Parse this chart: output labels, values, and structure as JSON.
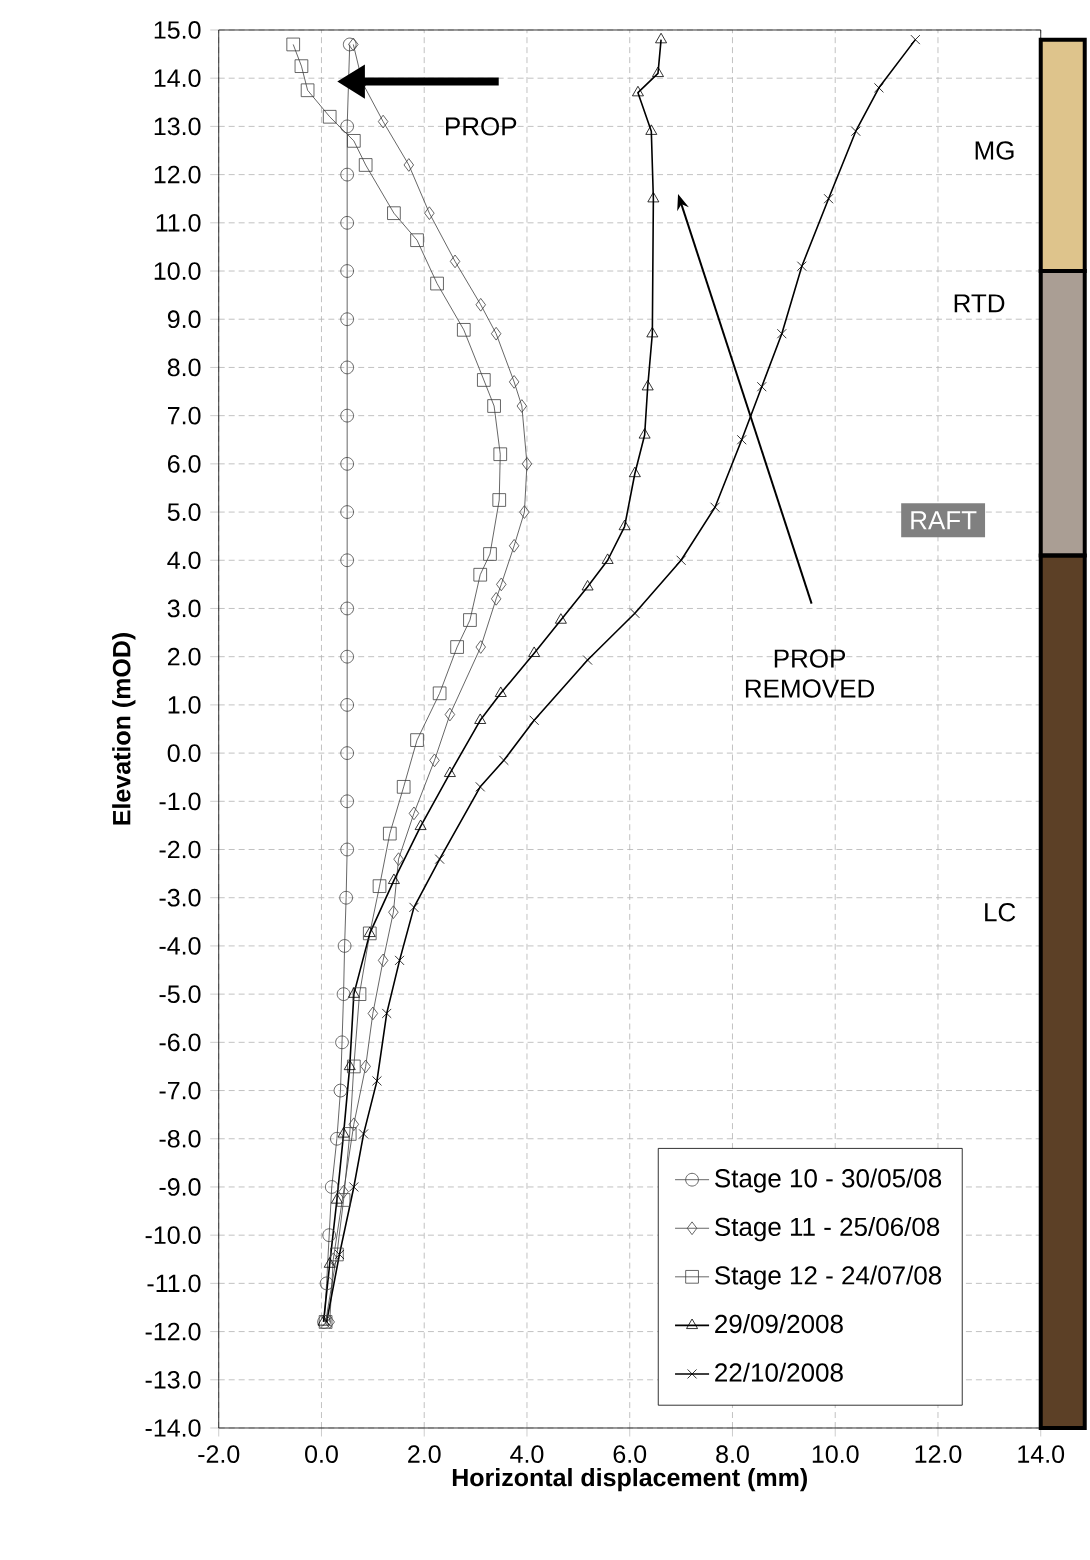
{
  "chart_data": {
    "type": "line",
    "xlabel": "Horizontal displacement (mm)",
    "ylabel": "Elevation (mOD)",
    "xlim": [
      -2,
      14
    ],
    "ylim": [
      -14,
      15
    ],
    "xticks": [
      {
        "value": -2,
        "label": "-2.0"
      },
      {
        "value": 0,
        "label": "0.0"
      },
      {
        "value": 2,
        "label": "2.0"
      },
      {
        "value": 4,
        "label": "4.0"
      },
      {
        "value": 6,
        "label": "6.0"
      },
      {
        "value": 8,
        "label": "8.0"
      },
      {
        "value": 10,
        "label": "10.0"
      },
      {
        "value": 12,
        "label": "12.0"
      },
      {
        "value": 14,
        "label": "14.0"
      }
    ],
    "yticks": [
      {
        "value": -14,
        "label": "-14.0"
      },
      {
        "value": -13,
        "label": "-13.0"
      },
      {
        "value": -12,
        "label": "-12.0"
      },
      {
        "value": -11,
        "label": "-11.0"
      },
      {
        "value": -10,
        "label": "-10.0"
      },
      {
        "value": -9,
        "label": "-9.0"
      },
      {
        "value": -8,
        "label": "-8.0"
      },
      {
        "value": -7,
        "label": "-7.0"
      },
      {
        "value": -6,
        "label": "-6.0"
      },
      {
        "value": -5,
        "label": "-5.0"
      },
      {
        "value": -4,
        "label": "-4.0"
      },
      {
        "value": -3,
        "label": "-3.0"
      },
      {
        "value": -2,
        "label": "-2.0"
      },
      {
        "value": -1,
        "label": "-1.0"
      },
      {
        "value": 0,
        "label": "0.0"
      },
      {
        "value": 1,
        "label": "1.0"
      },
      {
        "value": 2,
        "label": "2.0"
      },
      {
        "value": 3,
        "label": "3.0"
      },
      {
        "value": 4,
        "label": "4.0"
      },
      {
        "value": 5,
        "label": "5.0"
      },
      {
        "value": 6,
        "label": "6.0"
      },
      {
        "value": 7,
        "label": "7.0"
      },
      {
        "value": 8,
        "label": "8.0"
      },
      {
        "value": 9,
        "label": "9.0"
      },
      {
        "value": 10,
        "label": "10.0"
      },
      {
        "value": 11,
        "label": "11.0"
      },
      {
        "value": 12,
        "label": "12.0"
      },
      {
        "value": 13,
        "label": "13.0"
      },
      {
        "value": 14,
        "label": "14.0"
      },
      {
        "value": 15,
        "label": "15.0"
      }
    ],
    "grid": true,
    "legend": "bottom right",
    "line_style": "solid",
    "series": [
      {
        "name": "Stage 10 - 30/05/08",
        "color": "#404040",
        "marker": "circle",
        "x": [
          0.55,
          null,
          0.5,
          0.5,
          0.5,
          0.5,
          0.5,
          0.5,
          0.5,
          0.5,
          0.5,
          0.5,
          0.5,
          0.5,
          0.5,
          0.5,
          0.5,
          0.5,
          0.48,
          0.45,
          0.43,
          0.4,
          0.37,
          0.3,
          0.2,
          0.15,
          0.1,
          0.05
        ],
        "values": [
          14.7,
          null,
          13.0,
          12.0,
          11.0,
          10.0,
          9.0,
          8.0,
          7.0,
          6.0,
          5.0,
          4.0,
          3.0,
          2.0,
          1.0,
          0.0,
          -1.0,
          -2.0,
          -3.0,
          -4.0,
          -5.0,
          -6.0,
          -7.0,
          -8.0,
          -9.0,
          -10.0,
          -11.0,
          -11.8
        ]
      },
      {
        "name": "Stage 11 - 25/06/08",
        "color": "#404040",
        "marker": "diamond",
        "x": [
          0.62,
          0.8,
          1.2,
          1.7,
          2.1,
          2.6,
          3.1,
          3.4,
          3.75,
          3.9,
          4.0,
          3.95,
          3.75,
          3.5,
          3.4,
          3.1,
          2.5,
          2.2,
          1.8,
          1.5,
          1.4,
          1.2,
          1.0,
          0.86,
          0.63,
          0.43,
          0.23,
          0.16
        ],
        "values": [
          14.7,
          13.9,
          13.1,
          12.2,
          11.2,
          10.2,
          9.3,
          8.7,
          7.7,
          7.2,
          6.0,
          5.0,
          4.3,
          3.5,
          3.2,
          2.2,
          0.8,
          -0.15,
          -1.25,
          -2.2,
          -3.3,
          -4.3,
          -5.4,
          -6.5,
          -7.7,
          -9.1,
          -10.5,
          -11.8
        ]
      },
      {
        "name": "Stage 12 - 24/07/08",
        "color": "#404040",
        "marker": "square",
        "x": [
          -0.55,
          -0.39,
          -0.27,
          0.16,
          0.63,
          0.86,
          1.41,
          1.86,
          2.25,
          2.77,
          3.16,
          3.36,
          3.48,
          3.46,
          3.28,
          3.09,
          2.89,
          2.64,
          2.3,
          1.86,
          1.6,
          1.33,
          1.13,
          0.94,
          0.74,
          0.63,
          0.55,
          0.43,
          0.3,
          0.08
        ],
        "values": [
          14.7,
          14.25,
          13.75,
          13.2,
          12.7,
          12.2,
          11.2,
          10.64,
          9.74,
          8.78,
          7.74,
          7.2,
          6.2,
          5.25,
          4.13,
          3.7,
          2.76,
          2.2,
          1.24,
          0.27,
          -0.7,
          -1.67,
          -2.76,
          -3.74,
          -5.0,
          -6.5,
          -7.9,
          -9.27,
          -10.4,
          -11.8
        ]
      },
      {
        "name": "29/09/2008",
        "color": "#000000",
        "marker": "triangle",
        "x": [
          6.61,
          6.55,
          6.16,
          6.42,
          6.46,
          6.44,
          6.35,
          6.29,
          6.1,
          5.9,
          5.57,
          5.18,
          4.66,
          4.14,
          3.49,
          3.09,
          2.5,
          1.93,
          1.41,
          0.94,
          0.63,
          0.55,
          0.43,
          0.3,
          0.16,
          0.04
        ],
        "values": [
          14.8,
          14.1,
          13.7,
          12.9,
          11.5,
          8.7,
          7.6,
          6.6,
          5.8,
          4.7,
          4.0,
          3.45,
          2.76,
          2.07,
          1.24,
          0.68,
          -0.42,
          -1.52,
          -2.64,
          -3.74,
          -5.0,
          -6.5,
          -7.9,
          -9.27,
          -10.6,
          -11.8
        ]
      },
      {
        "name": "22/10/2008",
        "color": "#000000",
        "marker": "cross",
        "x": [
          11.56,
          10.85,
          10.4,
          9.87,
          9.35,
          8.96,
          8.57,
          8.18,
          7.66,
          7.0,
          6.1,
          5.18,
          4.14,
          3.55,
          3.09,
          2.3,
          1.8,
          1.52,
          1.27,
          1.08,
          0.82,
          0.63,
          0.35,
          0.1
        ],
        "values": [
          14.8,
          13.8,
          12.9,
          11.5,
          10.1,
          8.7,
          7.6,
          6.5,
          5.1,
          4.0,
          2.9,
          1.93,
          0.68,
          -0.15,
          -0.7,
          -2.2,
          -3.2,
          -4.3,
          -5.4,
          -6.8,
          -7.9,
          -9.0,
          -10.4,
          -11.8
        ]
      }
    ],
    "annotations": [
      "PROP",
      "PROP REMOVED",
      "MG",
      "RTD",
      "RAFT",
      "LC"
    ]
  }
}
